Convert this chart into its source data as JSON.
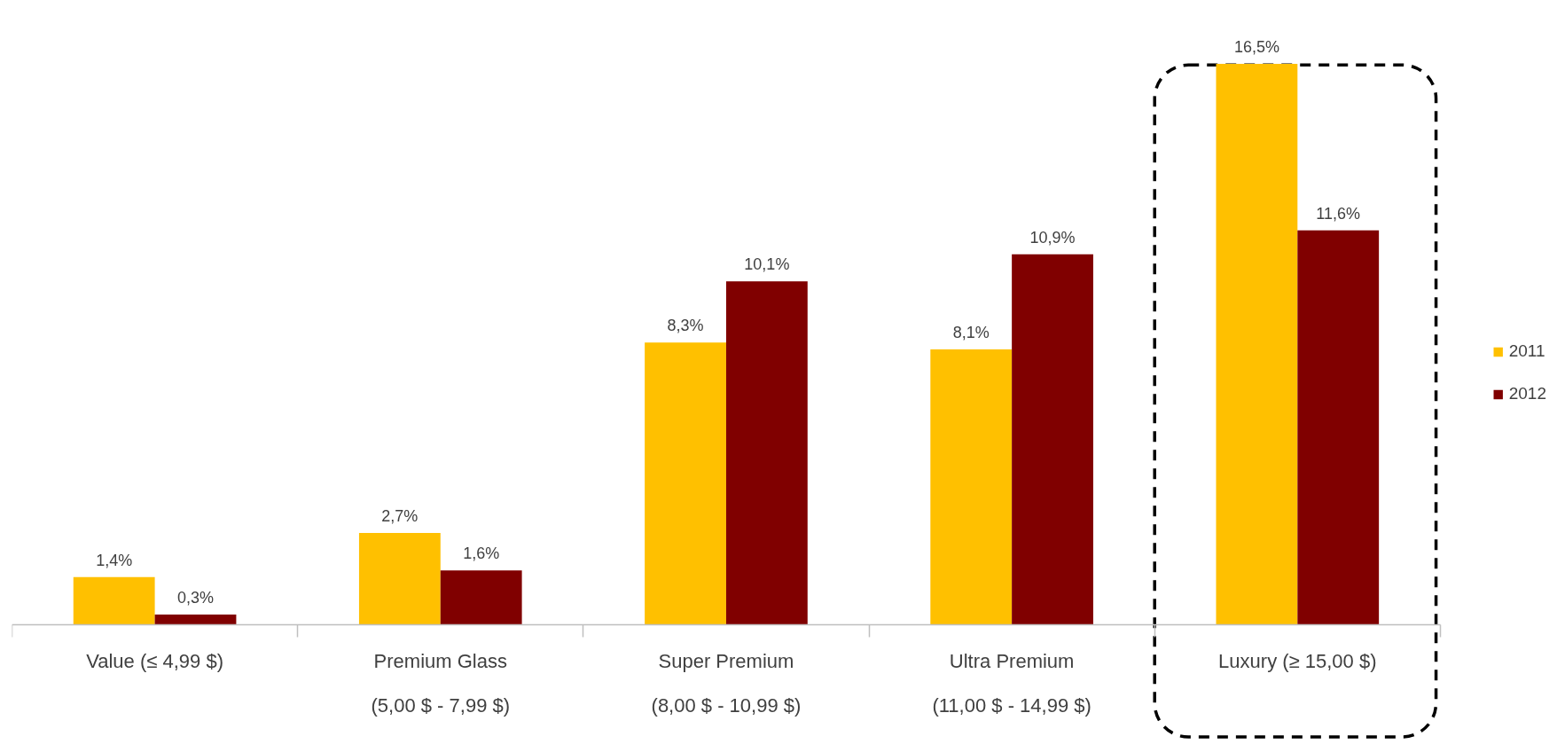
{
  "chart_data": {
    "type": "bar",
    "categories": [
      "Value (≤ 4,99 $)",
      "Premium Glass\n(5,00 $ - 7,99 $)",
      "Super Premium\n(8,00 $ - 10,99 $)",
      "Ultra Premium\n(11,00 $ - 14,99 $)",
      "Luxury (≥ 15,00 $)"
    ],
    "series": [
      {
        "name": "2011",
        "color": "#ffc000",
        "values": [
          1.4,
          2.7,
          8.3,
          8.1,
          16.5
        ],
        "value_labels": [
          "1,4%",
          "2,7%",
          "8,3%",
          "8,1%",
          "16,5%"
        ]
      },
      {
        "name": "2012",
        "color": "#800000",
        "values": [
          0.3,
          1.6,
          10.1,
          10.9,
          11.6
        ],
        "value_labels": [
          "0,3%",
          "1,6%",
          "10,1%",
          "10,9%",
          "11,6%"
        ]
      }
    ],
    "legend": "right",
    "tick_labels": "x"
  }
}
